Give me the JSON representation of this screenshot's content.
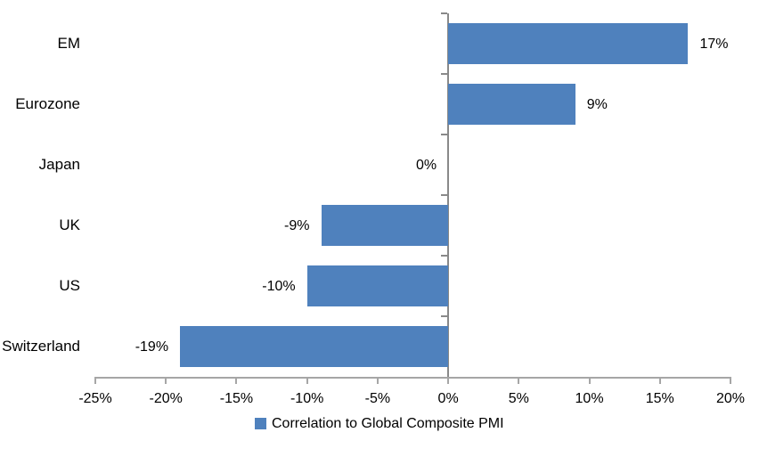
{
  "chart_data": {
    "type": "bar",
    "orientation": "horizontal",
    "title": "",
    "categories": [
      "EM",
      "Eurozone",
      "Japan",
      "UK",
      "US",
      "Switzerland"
    ],
    "values": [
      17,
      9,
      0,
      -9,
      -10,
      -19
    ],
    "data_labels": [
      "17%",
      "9%",
      "0%",
      "-9%",
      "-10%",
      "-19%"
    ],
    "x_tick_values": [
      -25,
      -20,
      -15,
      -10,
      -5,
      0,
      5,
      10,
      15,
      20
    ],
    "x_ticks": [
      "-25%",
      "-20%",
      "-15%",
      "-10%",
      "-5%",
      "0%",
      "5%",
      "10%",
      "15%",
      "20%"
    ],
    "xlim": [
      -25,
      20
    ],
    "grid": false,
    "legend_position": "bottom",
    "legend": [
      {
        "label": "Correlation to Global Composite PMI",
        "color": "#4F81BD"
      }
    ],
    "bar_color": "#4F81BD",
    "h_axis_color": "#A6A6A6",
    "v_axis_color": "#898989",
    "text_color": "#000000"
  }
}
